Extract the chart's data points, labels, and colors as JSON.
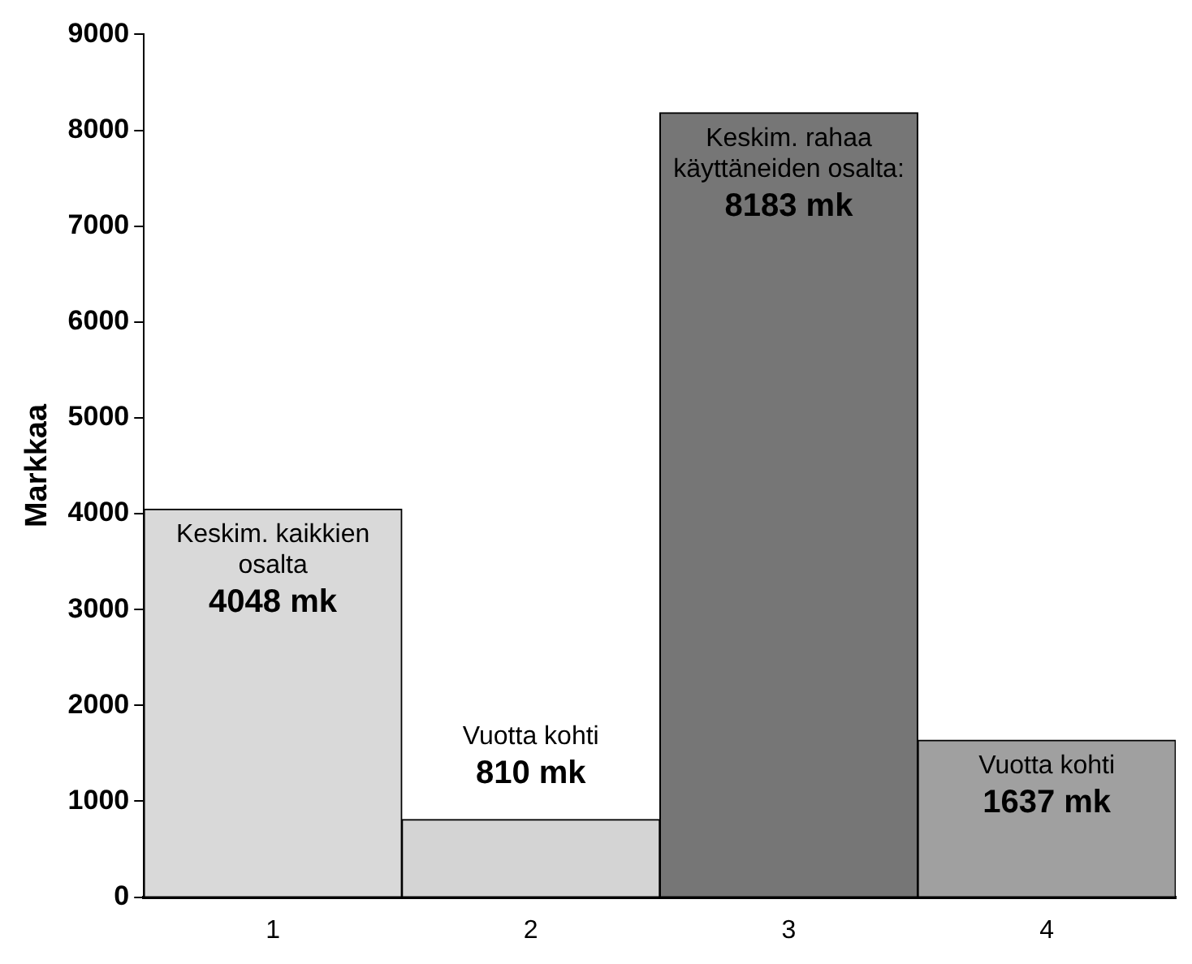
{
  "chart_data": {
    "type": "bar",
    "ylabel": "Markkaa",
    "categories": [
      "1",
      "2",
      "3",
      "4"
    ],
    "values": [
      4048,
      810,
      8183,
      1637
    ],
    "colors": [
      "#d9d9d9",
      "#d4d4d4",
      "#767676",
      "#a0a0a0"
    ],
    "value_labels": [
      "4048 mk",
      "810 mk",
      "8183 mk",
      "1637 mk"
    ],
    "annotations": [
      "Keskim. kaikkien osalta",
      "Vuotta kohti",
      "Keskim. rahaa käyttäneiden osalta:",
      "Vuotta kohti"
    ],
    "ylim": [
      0,
      9000
    ],
    "yticks": [
      0,
      1000,
      2000,
      3000,
      4000,
      5000,
      6000,
      7000,
      8000,
      9000
    ],
    "grid": false,
    "legend": false
  }
}
